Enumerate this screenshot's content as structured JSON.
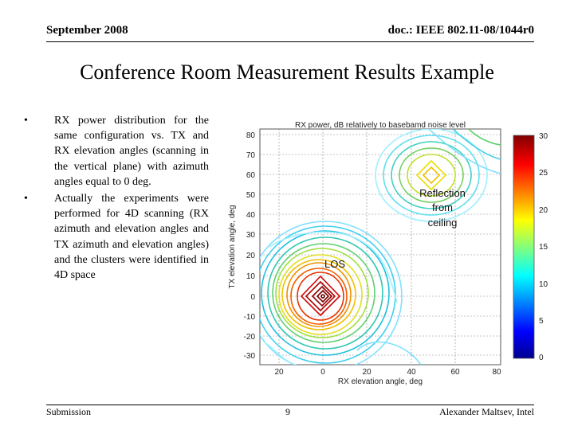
{
  "header": {
    "date": "September 2008",
    "doc": "doc.: IEEE 802.11-08/1044r0"
  },
  "title": "Conference Room Measurement Results Example",
  "bullets": [
    "RX power distribution for the same configuration vs. TX and RX elevation angles (scanning in the vertical plane) with azimuth angles equal to 0 deg.",
    "Actually the experiments were performed for 4D scanning (RX azimuth and elevation angles and TX azimuth and elevation angles) and the clusters were identified in 4D space"
  ],
  "figure": {
    "plot_title": "RX power, dB relatively to basebamd noise level",
    "xlabel": "RX elevation angle, deg",
    "ylabel": "TX elevation angle, deg",
    "xticks": [
      "20",
      "0",
      "20",
      "40",
      "60",
      "80"
    ],
    "yticks": [
      "80",
      "70",
      "60",
      "50",
      "40",
      "30",
      "20",
      "10",
      "0",
      "-10",
      "-20",
      "-30"
    ],
    "colorbar_ticks": [
      "30",
      "25",
      "20",
      "15",
      "10",
      "5",
      "0"
    ],
    "annotations": {
      "reflection_line1": "Reflection",
      "reflection_line2": "from",
      "reflection_line3": "ceiling",
      "los": "LOS"
    },
    "colors": {
      "red": "#d40000",
      "orange": "#f07800",
      "yellow": "#e8e000",
      "green": "#50c040",
      "cyan": "#30d0e0",
      "blue": "#2020c0",
      "dark_red": "#800000"
    }
  },
  "chart_data": {
    "type": "heatmap",
    "title": "RX power, dB relatively to basebamd noise level",
    "xlabel": "RX elevation angle, deg",
    "ylabel": "TX elevation angle, deg",
    "xlim": [
      -30,
      80
    ],
    "ylim": [
      -30,
      80
    ],
    "zlim": [
      0,
      30
    ],
    "peaks": [
      {
        "label": "LOS",
        "x": 0,
        "y": 0,
        "value": 30
      },
      {
        "label": "Reflection from ceiling",
        "x": 60,
        "y": 60,
        "value": 20
      }
    ]
  },
  "footer": {
    "left": "Submission",
    "page": "9",
    "right": "Alexander Maltsev, Intel"
  }
}
